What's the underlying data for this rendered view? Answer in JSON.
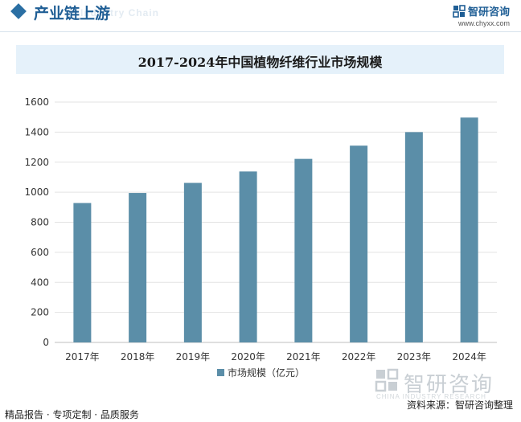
{
  "header": {
    "section_title": "产业链上游",
    "section_subtitle": "Industry Chain",
    "brand_name": "智研咨询",
    "brand_url": "www.chyxx.com"
  },
  "chart_data": {
    "type": "bar",
    "title": "2017-2024年中国植物纤维行业市场规模",
    "categories": [
      "2017年",
      "2018年",
      "2019年",
      "2020年",
      "2021年",
      "2022年",
      "2023年",
      "2024年"
    ],
    "series": [
      {
        "name": "市场规模（亿元）",
        "values": [
          928,
          995,
          1062,
          1138,
          1222,
          1310,
          1400,
          1497
        ]
      }
    ],
    "ylim": [
      0,
      1600
    ],
    "yticks": [
      0,
      200,
      400,
      600,
      800,
      1000,
      1200,
      1400,
      1600
    ],
    "grid": true,
    "legend": "bottom-center",
    "bar_color": "#5b8ea8"
  },
  "footer": {
    "left_text": "精品报告 · 专项定制 · 品质服务",
    "source_text": "资料来源：智研咨询整理"
  },
  "watermark": {
    "brand": "智研咨询",
    "sub": "CHINA INDUSTRY RESEARCH"
  }
}
